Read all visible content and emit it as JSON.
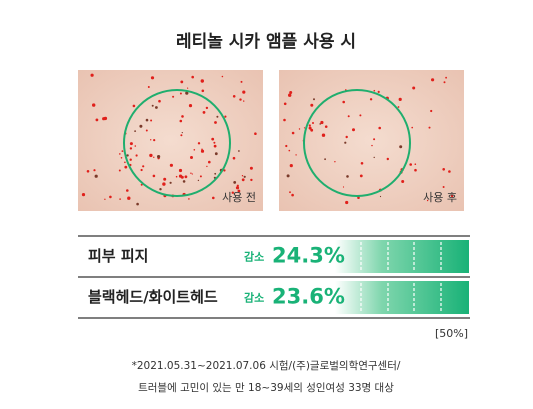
{
  "title": "레티놀 시카 앰플 사용 시",
  "photos": [
    {
      "label": "사용 전"
    },
    {
      "label": "사용 후"
    }
  ],
  "results": [
    {
      "label": "피부 피지",
      "change": "감소",
      "value": "24.3%"
    },
    {
      "label": "블랙헤드/화이트헤드",
      "change": "감소",
      "value": "23.6%"
    }
  ],
  "scale": "[50%]",
  "footnote": [
    "*2021.05.31~2021.07.06 시험/(주)글로벌의학연구센터/",
    "트러블에 고민이 있는 만 18~39세의 성인여성 33명 대상"
  ]
}
